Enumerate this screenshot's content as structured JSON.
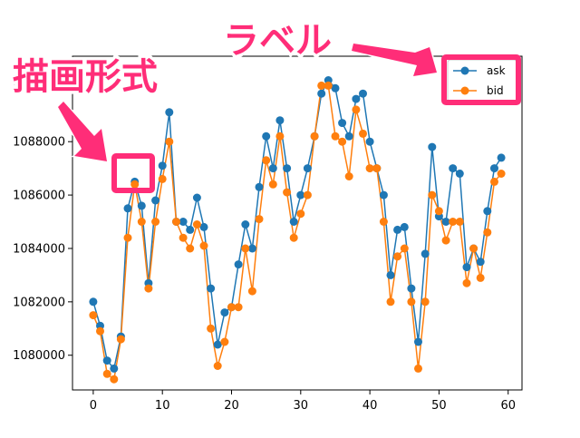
{
  "chart_data": {
    "type": "line",
    "x": [
      0,
      1,
      2,
      3,
      4,
      5,
      6,
      7,
      8,
      9,
      10,
      11,
      12,
      13,
      14,
      15,
      16,
      17,
      18,
      19,
      20,
      21,
      22,
      23,
      24,
      25,
      26,
      27,
      28,
      29,
      30,
      31,
      32,
      33,
      34,
      35,
      36,
      37,
      38,
      39,
      40,
      41,
      42,
      43,
      44,
      45,
      46,
      47,
      48,
      49,
      50,
      51,
      52,
      53,
      54,
      55,
      56,
      57,
      58,
      59
    ],
    "series": [
      {
        "name": "ask",
        "color": "#1f77b4",
        "marker": "circle",
        "values": [
          1082000,
          1081100,
          1079800,
          1079500,
          1080700,
          1085500,
          1086500,
          1085600,
          1082700,
          1085800,
          1087100,
          1089100,
          1085000,
          1085000,
          1084700,
          1085900,
          1084800,
          1082500,
          1080400,
          1081600,
          1081800,
          1083400,
          1084900,
          1084000,
          1086300,
          1088200,
          1087000,
          1088800,
          1087000,
          1085000,
          1086000,
          1087000,
          1088200,
          1089800,
          1090300,
          1090000,
          1088700,
          1088200,
          1089600,
          1089800,
          1088000,
          1087000,
          1086000,
          1083000,
          1084700,
          1084800,
          1082500,
          1080500,
          1083800,
          1087800,
          1085200,
          1085000,
          1087000,
          1086800,
          1083300,
          1084000,
          1083500,
          1085400,
          1087000,
          1087400
        ]
      },
      {
        "name": "bid",
        "color": "#ff7f0e",
        "marker": "circle",
        "values": [
          1081500,
          1080900,
          1079300,
          1079100,
          1080600,
          1084400,
          1086400,
          1085000,
          1082500,
          1085000,
          1086600,
          1088000,
          1085000,
          1084400,
          1084000,
          1084900,
          1084100,
          1081000,
          1079600,
          1080500,
          1081800,
          1081800,
          1084000,
          1082400,
          1085100,
          1087300,
          1086400,
          1088200,
          1086100,
          1084400,
          1085300,
          1086000,
          1088200,
          1090100,
          1090100,
          1088200,
          1088000,
          1086700,
          1089200,
          1088300,
          1087000,
          1087000,
          1085000,
          1082000,
          1083700,
          1084000,
          1082000,
          1079500,
          1082000,
          1086000,
          1085400,
          1084300,
          1085000,
          1085000,
          1082700,
          1084000,
          1082900,
          1084600,
          1086500,
          1086800
        ]
      }
    ],
    "xlim": [
      -3,
      62
    ],
    "ylim": [
      1078700,
      1091200
    ],
    "xticks": [
      0,
      10,
      20,
      30,
      40,
      50,
      60
    ],
    "yticks": [
      1080000,
      1082000,
      1084000,
      1086000,
      1088000,
      1090000
    ],
    "xtick_labels": [
      "0",
      "10",
      "20",
      "30",
      "40",
      "50",
      "60"
    ],
    "ytick_labels": [
      "1080000",
      "1082000",
      "1084000",
      "1086000",
      "1088000",
      "1090000"
    ],
    "grid": false,
    "legend_position": "top-right"
  },
  "annotations": {
    "label_text": "ラベル",
    "format_text": "描画形式",
    "color": "#ff2d78"
  }
}
